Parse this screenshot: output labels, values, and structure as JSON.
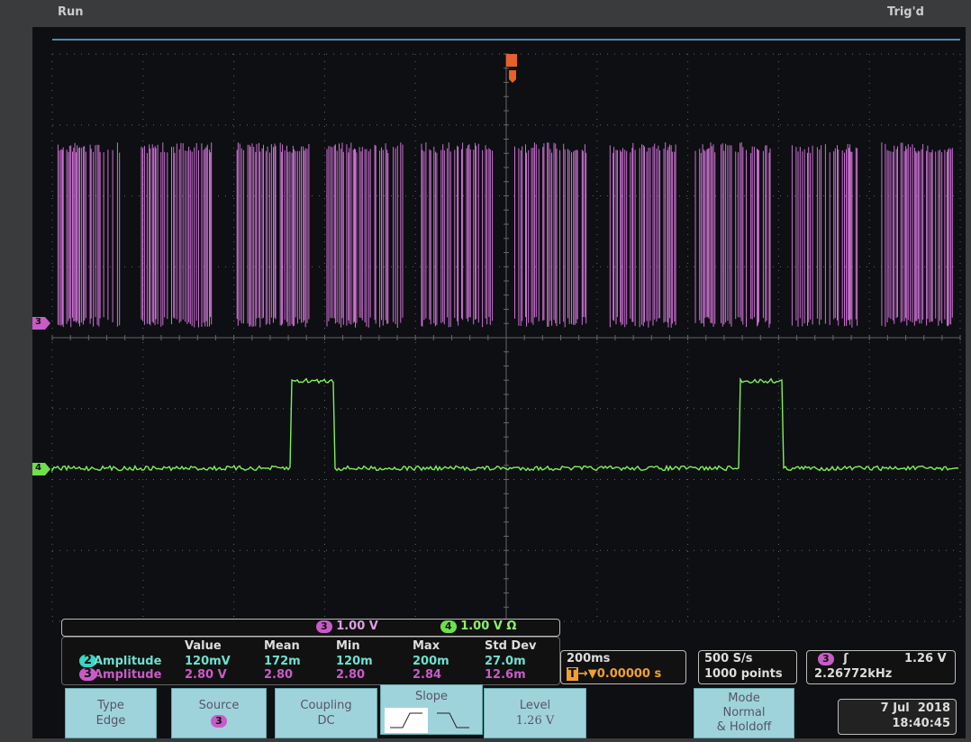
{
  "status": {
    "run": "Run",
    "trigger": "Trig'd"
  },
  "markers": {
    "ch3": "3",
    "ch4": "4"
  },
  "scale_bar": [
    {
      "channel": "3",
      "scale": "1.00 V"
    },
    {
      "channel": "4",
      "scale": "1.00 V Ω"
    }
  ],
  "measurements": {
    "headers": [
      "Value",
      "Mean",
      "Min",
      "Max",
      "Std Dev"
    ],
    "rows": [
      {
        "channel": "2",
        "name": "Amplitude",
        "values": [
          "120mV",
          "172m",
          "120m",
          "200m",
          "27.0m"
        ]
      },
      {
        "channel": "3",
        "name": "Amplitude",
        "values": [
          "2.80 V",
          "2.80",
          "2.80",
          "2.84",
          "12.6m"
        ]
      }
    ]
  },
  "timebase": {
    "scale": "200ms",
    "position": "0.00000 s"
  },
  "acquisition": {
    "rate": "500 S/s",
    "length": "1000 points"
  },
  "trigger_readout": {
    "channel": "3",
    "level": "1.26 V",
    "frequency": "2.26772kHz"
  },
  "menu": [
    {
      "label": "Type",
      "value": "Edge"
    },
    {
      "label": "Source",
      "value": "3"
    },
    {
      "label": "Coupling",
      "value": "DC"
    },
    {
      "label": "Slope"
    },
    {
      "label": "Level",
      "value": "1.26 V"
    },
    {
      "label": "Mode",
      "value": "Normal",
      "extra": "& Holdoff"
    }
  ],
  "datetime": {
    "date": "7 Jul  2018",
    "time": "18:40:45"
  }
}
